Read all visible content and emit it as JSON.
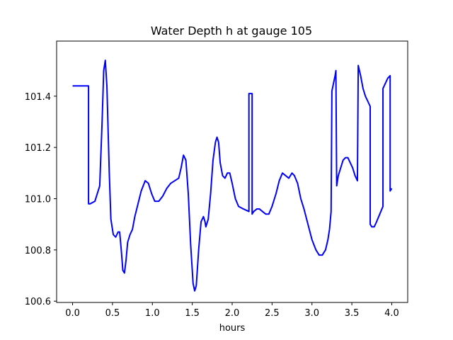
{
  "chart_data": {
    "type": "line",
    "title": "Water Depth h at gauge 105",
    "xlabel": "hours",
    "ylabel": "",
    "xlim": [
      -0.2,
      4.2
    ],
    "ylim": [
      100.595,
      101.615
    ],
    "xticks": [
      0.0,
      0.5,
      1.0,
      1.5,
      2.0,
      2.5,
      3.0,
      3.5,
      4.0
    ],
    "xtick_labels": [
      "0.0",
      "0.5",
      "1.0",
      "1.5",
      "2.0",
      "2.5",
      "3.0",
      "3.5",
      "4.0"
    ],
    "yticks": [
      100.6,
      100.8,
      101.0,
      101.2,
      101.4
    ],
    "ytick_labels": [
      "100.6",
      "100.8",
      "101.0",
      "101.2",
      "101.4"
    ],
    "grid": false,
    "legend": false,
    "series": [
      {
        "color": "#0000ff",
        "points": [
          [
            0.0,
            101.44
          ],
          [
            0.2,
            101.44
          ],
          [
            0.2,
            100.98
          ],
          [
            0.22,
            100.98
          ],
          [
            0.28,
            100.99
          ],
          [
            0.34,
            101.05
          ],
          [
            0.37,
            101.3
          ],
          [
            0.39,
            101.5
          ],
          [
            0.41,
            101.54
          ],
          [
            0.43,
            101.44
          ],
          [
            0.46,
            101.1
          ],
          [
            0.48,
            100.92
          ],
          [
            0.51,
            100.86
          ],
          [
            0.54,
            100.85
          ],
          [
            0.57,
            100.87
          ],
          [
            0.59,
            100.87
          ],
          [
            0.61,
            100.8
          ],
          [
            0.63,
            100.72
          ],
          [
            0.65,
            100.71
          ],
          [
            0.67,
            100.76
          ],
          [
            0.69,
            100.83
          ],
          [
            0.72,
            100.86
          ],
          [
            0.75,
            100.88
          ],
          [
            0.78,
            100.93
          ],
          [
            0.82,
            100.98
          ],
          [
            0.86,
            101.03
          ],
          [
            0.91,
            101.07
          ],
          [
            0.95,
            101.06
          ],
          [
            0.99,
            101.02
          ],
          [
            1.03,
            100.99
          ],
          [
            1.08,
            100.99
          ],
          [
            1.13,
            101.01
          ],
          [
            1.18,
            101.04
          ],
          [
            1.23,
            101.06
          ],
          [
            1.28,
            101.07
          ],
          [
            1.33,
            101.08
          ],
          [
            1.36,
            101.12
          ],
          [
            1.39,
            101.17
          ],
          [
            1.42,
            101.15
          ],
          [
            1.45,
            101.02
          ],
          [
            1.48,
            100.82
          ],
          [
            1.51,
            100.67
          ],
          [
            1.53,
            100.64
          ],
          [
            1.55,
            100.66
          ],
          [
            1.58,
            100.8
          ],
          [
            1.61,
            100.91
          ],
          [
            1.64,
            100.93
          ],
          [
            1.66,
            100.91
          ],
          [
            1.67,
            100.89
          ],
          [
            1.7,
            100.92
          ],
          [
            1.73,
            101.02
          ],
          [
            1.76,
            101.15
          ],
          [
            1.79,
            101.22
          ],
          [
            1.81,
            101.24
          ],
          [
            1.83,
            101.22
          ],
          [
            1.85,
            101.14
          ],
          [
            1.88,
            101.09
          ],
          [
            1.91,
            101.08
          ],
          [
            1.94,
            101.1
          ],
          [
            1.97,
            101.1
          ],
          [
            2.0,
            101.06
          ],
          [
            2.04,
            101.0
          ],
          [
            2.08,
            100.97
          ],
          [
            2.14,
            100.96
          ],
          [
            2.21,
            100.95
          ],
          [
            2.21,
            101.41
          ],
          [
            2.23,
            101.41
          ],
          [
            2.23,
            101.41
          ],
          [
            2.25,
            101.41
          ],
          [
            2.25,
            100.94
          ],
          [
            2.27,
            100.95
          ],
          [
            2.31,
            100.96
          ],
          [
            2.34,
            100.96
          ],
          [
            2.38,
            100.95
          ],
          [
            2.42,
            100.94
          ],
          [
            2.46,
            100.94
          ],
          [
            2.5,
            100.97
          ],
          [
            2.55,
            101.02
          ],
          [
            2.59,
            101.07
          ],
          [
            2.63,
            101.1
          ],
          [
            2.67,
            101.09
          ],
          [
            2.71,
            101.08
          ],
          [
            2.75,
            101.1
          ],
          [
            2.78,
            101.09
          ],
          [
            2.82,
            101.06
          ],
          [
            2.86,
            101.0
          ],
          [
            2.9,
            100.96
          ],
          [
            2.95,
            100.9
          ],
          [
            3.0,
            100.84
          ],
          [
            3.05,
            100.8
          ],
          [
            3.09,
            100.78
          ],
          [
            3.13,
            100.78
          ],
          [
            3.17,
            100.8
          ],
          [
            3.2,
            100.84
          ],
          [
            3.22,
            100.88
          ],
          [
            3.24,
            100.95
          ],
          [
            3.25,
            101.42
          ],
          [
            3.27,
            101.45
          ],
          [
            3.29,
            101.48
          ],
          [
            3.3,
            101.5
          ],
          [
            3.31,
            101.05
          ],
          [
            3.33,
            101.09
          ],
          [
            3.36,
            101.12
          ],
          [
            3.39,
            101.15
          ],
          [
            3.42,
            101.16
          ],
          [
            3.45,
            101.16
          ],
          [
            3.48,
            101.14
          ],
          [
            3.51,
            101.12
          ],
          [
            3.54,
            101.09
          ],
          [
            3.57,
            101.07
          ],
          [
            3.58,
            101.52
          ],
          [
            3.61,
            101.48
          ],
          [
            3.64,
            101.43
          ],
          [
            3.67,
            101.4
          ],
          [
            3.7,
            101.38
          ],
          [
            3.73,
            101.36
          ],
          [
            3.73,
            100.9
          ],
          [
            3.75,
            100.89
          ],
          [
            3.78,
            100.89
          ],
          [
            3.81,
            100.91
          ],
          [
            3.85,
            100.94
          ],
          [
            3.89,
            100.97
          ],
          [
            3.89,
            101.43
          ],
          [
            3.92,
            101.45
          ],
          [
            3.95,
            101.47
          ],
          [
            3.98,
            101.48
          ],
          [
            3.98,
            101.03
          ],
          [
            4.0,
            101.04
          ]
        ]
      }
    ]
  }
}
